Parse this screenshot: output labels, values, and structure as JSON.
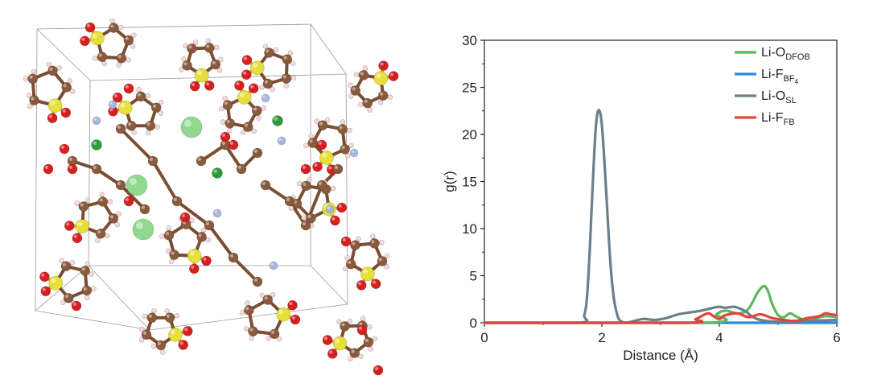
{
  "molecule_panel": {
    "atom_colors": {
      "carbon": "#8a5a3c",
      "hydrogen": "#f4d6d6",
      "oxygen": "#d61f1f",
      "sulfur": "#e8e03a",
      "lithium": "#8fd88f",
      "boron": "#2f9a3a",
      "fluorine": "#a7b6dd"
    }
  },
  "chart_data": {
    "type": "line",
    "xlabel": "Distance (Å)",
    "ylabel": "g(r)",
    "xlim": [
      0,
      6
    ],
    "ylim": [
      0,
      30
    ],
    "xticks": [
      0,
      2,
      4,
      6
    ],
    "yticks": [
      0,
      5,
      10,
      15,
      20,
      25,
      30
    ],
    "grid": false,
    "legend_position": "top-right",
    "series": [
      {
        "name": "Li-O",
        "subscript": "DFOB",
        "color": "#5cb85c",
        "x": [
          0,
          3.8,
          3.95,
          4.1,
          4.3,
          4.45,
          4.55,
          4.65,
          4.75,
          4.82,
          4.9,
          5.0,
          5.1,
          5.2,
          5.3,
          5.45,
          5.6,
          5.8,
          6.0
        ],
        "y": [
          0,
          0,
          0.9,
          1.3,
          1.0,
          1.2,
          2.0,
          3.2,
          3.9,
          3.5,
          2.0,
          0.8,
          0.6,
          1.0,
          0.7,
          0.3,
          0.4,
          0.7,
          0.6
        ]
      },
      {
        "name": "Li-F",
        "subscript": "BF",
        "subscript2": "4",
        "color": "#2e86de",
        "x": [
          0,
          6.0
        ],
        "y": [
          0,
          0
        ]
      },
      {
        "name": "Li-O",
        "subscript": "SL",
        "color": "#6b7f8c",
        "x": [
          0,
          1.6,
          1.7,
          1.75,
          1.8,
          1.85,
          1.9,
          1.95,
          2.0,
          2.05,
          2.1,
          2.15,
          2.2,
          2.25,
          2.3,
          2.4,
          2.5,
          2.7,
          2.9,
          3.1,
          3.3,
          3.5,
          3.7,
          3.9,
          4.0,
          4.1,
          4.25,
          4.35,
          4.45,
          4.55,
          4.7,
          5.0,
          5.5,
          6.0
        ],
        "y": [
          0,
          0,
          0.8,
          3.0,
          8.5,
          15.5,
          21.0,
          22.6,
          21.0,
          16.5,
          11.0,
          6.0,
          2.8,
          1.1,
          0.3,
          0.0,
          0.1,
          0.4,
          0.3,
          0.5,
          0.9,
          1.1,
          1.3,
          1.6,
          1.7,
          1.6,
          1.7,
          1.5,
          1.2,
          0.7,
          0.3,
          0.1,
          0.2,
          0.3
        ]
      },
      {
        "name": "Li-F",
        "subscript": "FB",
        "color": "#e0443a",
        "x": [
          0,
          3.4,
          3.6,
          3.8,
          3.9,
          4.0,
          4.1,
          4.3,
          4.5,
          4.7,
          4.9,
          5.1,
          5.3,
          5.5,
          5.7,
          5.8,
          5.9,
          6.0
        ],
        "y": [
          0,
          0,
          0.4,
          1.0,
          0.7,
          0.4,
          0.8,
          1.0,
          0.6,
          0.9,
          0.5,
          0.3,
          0.2,
          0.5,
          0.7,
          1.0,
          0.9,
          0.8
        ]
      }
    ]
  }
}
